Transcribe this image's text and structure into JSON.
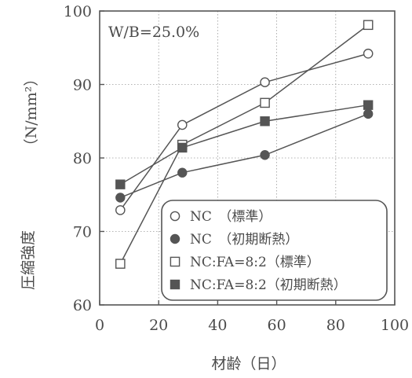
{
  "chart_data": {
    "type": "line",
    "annotation": "W/B=25.0%",
    "xlabel": "材齢（日）",
    "ylabel": "圧縮強度",
    "ylabel_unit": "（N/mm²）",
    "xlim": [
      0,
      100
    ],
    "ylim": [
      60,
      100
    ],
    "xticks": [
      "0",
      "20",
      "40",
      "60",
      "80",
      "100"
    ],
    "yticks": [
      "60",
      "70",
      "80",
      "90",
      "100"
    ],
    "grid": true,
    "legend_position": "bottom-right",
    "series": [
      {
        "name": "NC　（標準）",
        "marker": "circle-open",
        "color": "#555555",
        "x": [
          7,
          28,
          56,
          91
        ],
        "y": [
          72.9,
          84.5,
          90.3,
          94.2
        ]
      },
      {
        "name": "NC　（初期断熱）",
        "marker": "circle-filled",
        "color": "#555555",
        "x": [
          7,
          28,
          56,
          91
        ],
        "y": [
          74.6,
          78.0,
          80.4,
          86.0
        ]
      },
      {
        "name": "NC:FA=8:2（標準）",
        "marker": "square-open",
        "color": "#555555",
        "x": [
          7,
          28,
          56,
          91
        ],
        "y": [
          65.6,
          81.8,
          87.5,
          98.1
        ]
      },
      {
        "name": "NC:FA=8:2（初期断熱）",
        "marker": "square-filled",
        "color": "#555555",
        "x": [
          7,
          28,
          56,
          91
        ],
        "y": [
          76.4,
          81.4,
          85.0,
          87.2
        ]
      }
    ]
  }
}
